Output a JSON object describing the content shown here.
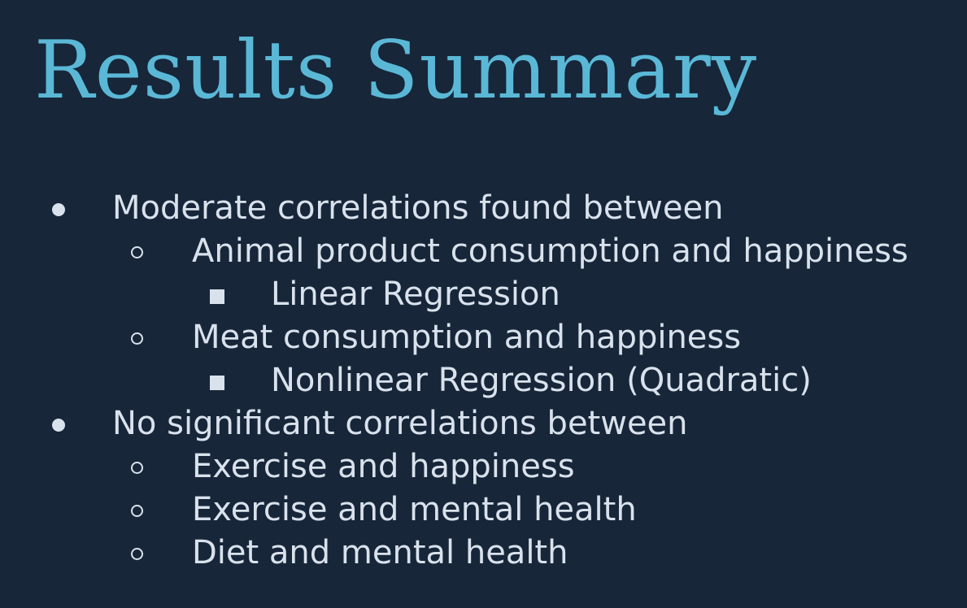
{
  "slide": {
    "title": "Results Summary",
    "items": [
      {
        "level": 1,
        "bullet": "filled-circle-bullet",
        "text": "Moderate correlations found between"
      },
      {
        "level": 2,
        "bullet": "hollow-circle-bullet",
        "text": "Animal product consumption and happiness"
      },
      {
        "level": 3,
        "bullet": "filled-square-bullet",
        "text": "Linear Regression"
      },
      {
        "level": 2,
        "bullet": "hollow-circle-bullet",
        "text": "Meat consumption and happiness"
      },
      {
        "level": 3,
        "bullet": "filled-square-bullet",
        "text": "Nonlinear Regression (Quadratic)"
      },
      {
        "level": 1,
        "bullet": "filled-circle-bullet",
        "text": "No significant correlations between"
      },
      {
        "level": 2,
        "bullet": "hollow-circle-bullet",
        "text": "Exercise and happiness"
      },
      {
        "level": 2,
        "bullet": "hollow-circle-bullet",
        "text": "Exercise and mental health"
      },
      {
        "level": 2,
        "bullet": "hollow-circle-bullet",
        "text": "Diet and mental health"
      }
    ]
  },
  "colors": {
    "background": "#172639",
    "title": "#5ab8d6",
    "body_text": "#d9e2ec"
  }
}
